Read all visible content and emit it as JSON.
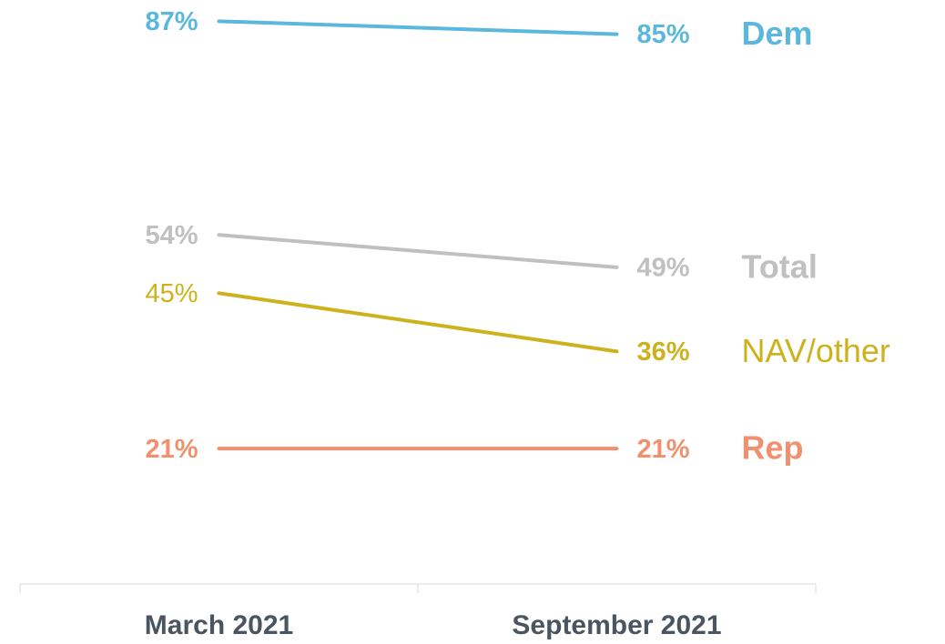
{
  "chart_data": {
    "type": "line",
    "categories": [
      "March 2021",
      "September 2021"
    ],
    "ylim": [
      0,
      90
    ],
    "series": [
      {
        "name": "Dem",
        "color": "#5bb8dc",
        "values": [
          87,
          85
        ],
        "value_labels": [
          "87%",
          "85%"
        ]
      },
      {
        "name": "Total",
        "color": "#c0c0c0",
        "values": [
          54,
          49
        ],
        "value_labels": [
          "54%",
          "49%"
        ]
      },
      {
        "name": "NAV/other",
        "color": "#cdb21d",
        "values": [
          45,
          36
        ],
        "value_labels": [
          "45%",
          "36%"
        ]
      },
      {
        "name": "Rep",
        "color": "#f0906e",
        "values": [
          21,
          21
        ],
        "value_labels": [
          "21%",
          "21%"
        ]
      }
    ]
  }
}
